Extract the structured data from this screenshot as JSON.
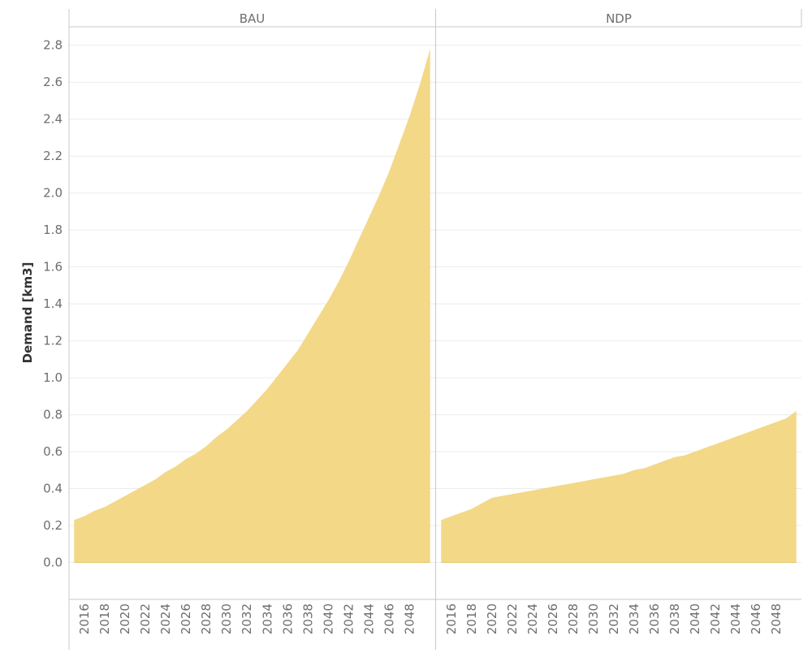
{
  "chart_data": {
    "type": "area",
    "ylabel": "Demand [km3]",
    "ylim": [
      -0.2,
      2.9
    ],
    "yticks": [
      "0.0",
      "0.2",
      "0.4",
      "0.6",
      "0.8",
      "1.0",
      "1.2",
      "1.4",
      "1.6",
      "1.8",
      "2.0",
      "2.2",
      "2.4",
      "2.6",
      "2.8"
    ],
    "xticks": [
      "2016",
      "2018",
      "2020",
      "2022",
      "2024",
      "2026",
      "2028",
      "2030",
      "2032",
      "2034",
      "2036",
      "2038",
      "2040",
      "2042",
      "2044",
      "2046",
      "2048"
    ],
    "xlim": [
      2014.5,
      2050.5
    ],
    "grid": true,
    "color": "#f2d682",
    "panels": [
      {
        "title": "BAU",
        "x": [
          2015,
          2016,
          2017,
          2018,
          2019,
          2020,
          2021,
          2022,
          2023,
          2024,
          2025,
          2026,
          2027,
          2028,
          2029,
          2030,
          2031,
          2032,
          2033,
          2034,
          2035,
          2036,
          2037,
          2038,
          2039,
          2040,
          2041,
          2042,
          2043,
          2044,
          2045,
          2046,
          2047,
          2048,
          2049,
          2050
        ],
        "values": [
          0.23,
          0.25,
          0.28,
          0.3,
          0.33,
          0.36,
          0.39,
          0.42,
          0.45,
          0.49,
          0.52,
          0.56,
          0.59,
          0.63,
          0.68,
          0.72,
          0.77,
          0.82,
          0.88,
          0.94,
          1.01,
          1.08,
          1.15,
          1.24,
          1.33,
          1.42,
          1.52,
          1.63,
          1.75,
          1.87,
          1.99,
          2.12,
          2.27,
          2.42,
          2.59,
          2.78
        ]
      },
      {
        "title": "NDP",
        "x": [
          2015,
          2016,
          2017,
          2018,
          2019,
          2020,
          2021,
          2022,
          2023,
          2024,
          2025,
          2026,
          2027,
          2028,
          2029,
          2030,
          2031,
          2032,
          2033,
          2034,
          2035,
          2036,
          2037,
          2038,
          2039,
          2040,
          2041,
          2042,
          2043,
          2044,
          2045,
          2046,
          2047,
          2048,
          2049,
          2050
        ],
        "values": [
          0.23,
          0.25,
          0.27,
          0.29,
          0.32,
          0.35,
          0.36,
          0.37,
          0.38,
          0.39,
          0.4,
          0.41,
          0.42,
          0.43,
          0.44,
          0.45,
          0.46,
          0.47,
          0.48,
          0.5,
          0.51,
          0.53,
          0.55,
          0.57,
          0.58,
          0.6,
          0.62,
          0.64,
          0.66,
          0.68,
          0.7,
          0.72,
          0.74,
          0.76,
          0.78,
          0.82
        ]
      }
    ]
  }
}
